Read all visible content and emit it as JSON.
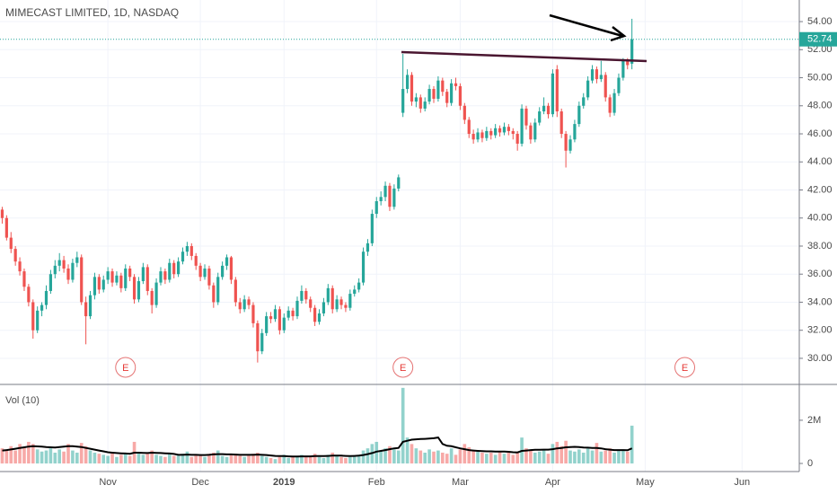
{
  "chart_data": [
    {
      "type": "candlestick",
      "title": "MIMECAST LIMITED, 1D, NASDAQ",
      "up_color": "#26a69a",
      "down_color": "#ef5350",
      "grid": true,
      "xlim": [
        -0.5,
        181
      ],
      "xticks": [
        {
          "value": 24,
          "label": "Nov"
        },
        {
          "value": 45,
          "label": "Dec"
        },
        {
          "value": 64,
          "label": "2019"
        },
        {
          "value": 85,
          "label": "Feb"
        },
        {
          "value": 104,
          "label": "Mar"
        },
        {
          "value": 125,
          "label": "Apr"
        },
        {
          "value": 146,
          "label": "May"
        },
        {
          "value": 168,
          "label": "Jun"
        }
      ],
      "ylim": [
        28.14,
        55.54
      ],
      "yticks": [
        {
          "value": 30,
          "label": "30.00"
        },
        {
          "value": 32,
          "label": "32.00"
        },
        {
          "value": 34,
          "label": "34.00"
        },
        {
          "value": 36,
          "label": "36.00"
        },
        {
          "value": 38,
          "label": "38.00"
        },
        {
          "value": 40,
          "label": "40.00"
        },
        {
          "value": 42,
          "label": "42.00"
        },
        {
          "value": 44,
          "label": "44.00"
        },
        {
          "value": 46,
          "label": "46.00"
        },
        {
          "value": 48,
          "label": "48.00"
        },
        {
          "value": 50,
          "label": "50.00"
        },
        {
          "value": 52,
          "label": "52.00"
        },
        {
          "value": 54,
          "label": "54.00"
        }
      ],
      "last_price": 52.74,
      "events": [
        {
          "index": 28,
          "label": "E"
        },
        {
          "index": 91,
          "label": "E"
        },
        {
          "index": 155,
          "label": "E"
        }
      ],
      "ohlc": [
        [
          40.6,
          40.8,
          39.6,
          40.0
        ],
        [
          40.0,
          40.2,
          38.4,
          38.6
        ],
        [
          38.6,
          39.0,
          37.5,
          37.8
        ],
        [
          37.8,
          38.0,
          36.6,
          36.9
        ],
        [
          36.9,
          37.2,
          35.9,
          36.2
        ],
        [
          36.2,
          36.4,
          34.8,
          35.1
        ],
        [
          35.1,
          35.3,
          33.7,
          34.0
        ],
        [
          34.0,
          34.2,
          31.4,
          32.0
        ],
        [
          32.0,
          33.7,
          31.8,
          33.4
        ],
        [
          33.4,
          34.0,
          33.0,
          33.8
        ],
        [
          33.8,
          35.2,
          33.5,
          34.8
        ],
        [
          34.8,
          36.3,
          34.6,
          36.0
        ],
        [
          36.0,
          37.0,
          35.7,
          36.6
        ],
        [
          36.6,
          37.5,
          36.2,
          37.0
        ],
        [
          37.0,
          37.3,
          36.1,
          36.4
        ],
        [
          36.4,
          36.7,
          35.3,
          35.6
        ],
        [
          35.6,
          37.1,
          35.4,
          36.8
        ],
        [
          36.8,
          37.6,
          36.5,
          37.2
        ],
        [
          37.2,
          37.4,
          33.8,
          34.0
        ],
        [
          34.0,
          34.4,
          31.0,
          33.0
        ],
        [
          33.0,
          34.8,
          32.8,
          34.5
        ],
        [
          34.5,
          36.1,
          34.2,
          35.8
        ],
        [
          35.8,
          36.0,
          34.6,
          34.9
        ],
        [
          34.9,
          35.9,
          34.7,
          35.6
        ],
        [
          35.6,
          36.5,
          35.3,
          36.2
        ],
        [
          36.2,
          36.4,
          35.1,
          35.4
        ],
        [
          35.4,
          36.2,
          35.2,
          35.9
        ],
        [
          35.9,
          36.1,
          34.7,
          35.0
        ],
        [
          35.0,
          36.7,
          34.8,
          36.4
        ],
        [
          36.4,
          36.6,
          35.5,
          35.8
        ],
        [
          35.8,
          36.0,
          33.9,
          34.2
        ],
        [
          34.2,
          35.8,
          34.0,
          35.5
        ],
        [
          35.5,
          36.8,
          35.3,
          36.5
        ],
        [
          36.5,
          36.7,
          34.5,
          34.8
        ],
        [
          34.8,
          35.0,
          33.2,
          33.8
        ],
        [
          33.8,
          35.7,
          33.6,
          35.4
        ],
        [
          35.4,
          36.5,
          35.2,
          36.2
        ],
        [
          36.2,
          36.4,
          35.3,
          35.6
        ],
        [
          35.6,
          37.1,
          35.4,
          36.8
        ],
        [
          36.8,
          37.0,
          35.7,
          36.0
        ],
        [
          36.0,
          37.2,
          35.8,
          36.9
        ],
        [
          36.9,
          37.9,
          36.7,
          37.6
        ],
        [
          37.6,
          38.3,
          37.3,
          38.0
        ],
        [
          38.0,
          38.2,
          37.0,
          37.3
        ],
        [
          37.3,
          37.5,
          36.3,
          36.6
        ],
        [
          36.6,
          36.8,
          35.5,
          35.8
        ],
        [
          35.8,
          36.7,
          35.6,
          36.4
        ],
        [
          36.4,
          36.6,
          34.9,
          35.2
        ],
        [
          35.2,
          35.4,
          33.6,
          34.0
        ],
        [
          34.0,
          36.1,
          33.8,
          35.8
        ],
        [
          35.8,
          36.9,
          35.6,
          36.6
        ],
        [
          36.6,
          37.4,
          36.3,
          37.2
        ],
        [
          37.2,
          37.3,
          35.3,
          35.6
        ],
        [
          35.6,
          35.8,
          33.7,
          34.0
        ],
        [
          34.0,
          34.3,
          33.2,
          33.5
        ],
        [
          33.5,
          34.5,
          33.3,
          34.2
        ],
        [
          34.2,
          34.4,
          33.5,
          33.8
        ],
        [
          33.8,
          34.0,
          32.2,
          32.5
        ],
        [
          32.5,
          32.7,
          29.7,
          30.5
        ],
        [
          30.5,
          32.1,
          30.3,
          31.8
        ],
        [
          31.8,
          33.3,
          31.6,
          33.0
        ],
        [
          33.0,
          33.3,
          32.5,
          32.8
        ],
        [
          32.8,
          33.8,
          32.6,
          33.5
        ],
        [
          33.5,
          33.7,
          31.7,
          32.0
        ],
        [
          32.0,
          33.2,
          31.8,
          32.9
        ],
        [
          32.9,
          33.7,
          32.7,
          33.4
        ],
        [
          33.4,
          33.6,
          32.7,
          33.0
        ],
        [
          33.0,
          34.4,
          32.8,
          34.1
        ],
        [
          34.1,
          35.2,
          33.9,
          34.8
        ],
        [
          34.8,
          35.0,
          33.9,
          34.2
        ],
        [
          34.2,
          34.4,
          33.3,
          33.6
        ],
        [
          33.6,
          33.8,
          32.3,
          32.6
        ],
        [
          32.6,
          33.5,
          32.4,
          33.2
        ],
        [
          33.2,
          34.3,
          33.0,
          34.0
        ],
        [
          34.0,
          35.3,
          33.8,
          35.0
        ],
        [
          35.0,
          35.2,
          33.2,
          33.5
        ],
        [
          33.5,
          34.5,
          33.3,
          34.2
        ],
        [
          34.2,
          34.4,
          33.5,
          33.8
        ],
        [
          33.8,
          34.0,
          33.3,
          33.6
        ],
        [
          33.6,
          34.9,
          33.4,
          34.6
        ],
        [
          34.6,
          35.2,
          34.4,
          34.9
        ],
        [
          34.9,
          35.7,
          34.7,
          35.4
        ],
        [
          35.4,
          37.9,
          35.2,
          37.6
        ],
        [
          37.6,
          38.5,
          37.3,
          38.2
        ],
        [
          38.2,
          40.6,
          38.0,
          40.3
        ],
        [
          40.3,
          41.5,
          40.0,
          41.2
        ],
        [
          41.2,
          41.9,
          40.9,
          41.5
        ],
        [
          41.5,
          42.6,
          41.2,
          42.3
        ],
        [
          42.3,
          42.5,
          40.5,
          40.8
        ],
        [
          40.8,
          42.4,
          40.6,
          42.1
        ],
        [
          42.1,
          43.1,
          41.9,
          42.9
        ],
        [
          47.5,
          51.7,
          47.2,
          49.2
        ],
        [
          49.2,
          50.6,
          48.9,
          50.2
        ],
        [
          50.2,
          50.4,
          48.0,
          48.3
        ],
        [
          48.3,
          48.9,
          47.9,
          48.6
        ],
        [
          48.6,
          48.8,
          47.5,
          47.8
        ],
        [
          47.8,
          48.6,
          47.6,
          48.3
        ],
        [
          48.3,
          49.5,
          48.1,
          49.2
        ],
        [
          49.2,
          49.4,
          48.2,
          48.5
        ],
        [
          48.5,
          50.1,
          48.3,
          49.8
        ],
        [
          49.8,
          50.0,
          48.7,
          49.0
        ],
        [
          49.0,
          49.2,
          47.9,
          48.2
        ],
        [
          48.2,
          49.9,
          48.0,
          49.6
        ],
        [
          49.6,
          50.0,
          49.1,
          49.4
        ],
        [
          49.4,
          49.6,
          47.7,
          48.0
        ],
        [
          48.0,
          48.2,
          46.7,
          47.0
        ],
        [
          47.0,
          47.2,
          45.7,
          46.0
        ],
        [
          46.0,
          46.3,
          45.3,
          45.6
        ],
        [
          45.6,
          46.4,
          45.4,
          46.1
        ],
        [
          46.1,
          46.3,
          45.4,
          45.7
        ],
        [
          45.7,
          46.5,
          45.5,
          46.2
        ],
        [
          46.2,
          46.4,
          45.6,
          45.9
        ],
        [
          45.9,
          46.7,
          45.7,
          46.4
        ],
        [
          46.4,
          46.6,
          45.8,
          46.1
        ],
        [
          46.1,
          46.8,
          45.9,
          46.5
        ],
        [
          46.5,
          46.7,
          45.9,
          46.2
        ],
        [
          46.2,
          46.4,
          45.6,
          46.0
        ],
        [
          46.0,
          46.2,
          44.8,
          45.3
        ],
        [
          45.3,
          48.1,
          45.1,
          47.8
        ],
        [
          47.8,
          48.0,
          46.3,
          46.6
        ],
        [
          46.6,
          46.8,
          45.3,
          45.6
        ],
        [
          45.6,
          47.1,
          45.4,
          46.8
        ],
        [
          46.8,
          47.9,
          46.6,
          47.6
        ],
        [
          47.6,
          48.6,
          47.4,
          48.0
        ],
        [
          48.0,
          48.2,
          47.1,
          47.4
        ],
        [
          47.4,
          50.6,
          47.2,
          50.3
        ],
        [
          50.6,
          50.9,
          47.2,
          47.6
        ],
        [
          47.6,
          47.8,
          45.7,
          46.0
        ],
        [
          46.0,
          46.2,
          43.6,
          44.8
        ],
        [
          44.8,
          45.9,
          44.6,
          45.6
        ],
        [
          45.6,
          47.0,
          45.4,
          46.7
        ],
        [
          46.7,
          48.3,
          46.5,
          48.0
        ],
        [
          48.0,
          48.9,
          47.8,
          48.6
        ],
        [
          48.6,
          50.1,
          48.4,
          49.8
        ],
        [
          49.8,
          50.9,
          49.6,
          50.6
        ],
        [
          50.6,
          50.8,
          49.6,
          49.9
        ],
        [
          49.9,
          51.2,
          49.7,
          50.2
        ],
        [
          50.2,
          50.4,
          48.3,
          48.6
        ],
        [
          48.6,
          48.8,
          47.2,
          47.5
        ],
        [
          47.5,
          49.2,
          47.3,
          48.9
        ],
        [
          48.9,
          50.3,
          48.7,
          50.0
        ],
        [
          50.0,
          51.4,
          49.8,
          51.2
        ],
        [
          51.2,
          51.4,
          50.6,
          50.9
        ],
        [
          51.0,
          54.2,
          50.6,
          52.74
        ]
      ]
    },
    {
      "type": "bar",
      "title": "Vol (10)",
      "ma_color": "#000000",
      "ylim": [
        -375000,
        3660000
      ],
      "yticks": [
        0,
        {
          "value": 2000000,
          "label": "2M"
        }
      ],
      "values": [
        700000,
        650000,
        800000,
        600000,
        900000,
        750000,
        1000000,
        900000,
        650000,
        550000,
        600000,
        700000,
        500000,
        650000,
        550000,
        900000,
        600000,
        500000,
        950000,
        800000,
        600000,
        500000,
        450000,
        400000,
        350000,
        500000,
        300000,
        400000,
        450000,
        350000,
        1000000,
        500000,
        400000,
        450000,
        600000,
        400000,
        350000,
        300000,
        500000,
        350000,
        400000,
        450000,
        550000,
        300000,
        400000,
        350000,
        300000,
        450000,
        500000,
        600000,
        350000,
        300000,
        400000,
        450000,
        350000,
        300000,
        400000,
        450000,
        500000,
        350000,
        300000,
        250000,
        200000,
        300000,
        400000,
        250000,
        300000,
        350000,
        400000,
        300000,
        350000,
        450000,
        300000,
        250000,
        400000,
        500000,
        350000,
        300000,
        250000,
        300000,
        350000,
        400000,
        600000,
        700000,
        900000,
        1000000,
        600000,
        700000,
        800000,
        650000,
        600000,
        3500000,
        1200000,
        900000,
        700000,
        600000,
        500000,
        650000,
        550000,
        600000,
        500000,
        450000,
        700000,
        400000,
        650000,
        900000,
        750000,
        600000,
        550000,
        500000,
        450000,
        500000,
        400000,
        550000,
        450000,
        500000,
        400000,
        550000,
        1200000,
        700000,
        600000,
        500000,
        550000,
        650000,
        450000,
        900000,
        1000000,
        800000,
        1050000,
        600000,
        550000,
        650000,
        500000,
        700000,
        600000,
        950000,
        550000,
        600000,
        700000,
        500000,
        600000,
        650000,
        550000,
        1750000
      ],
      "ma": [
        600000,
        620000,
        650000,
        680000,
        720000,
        750000,
        780000,
        800000,
        790000,
        780000,
        760000,
        750000,
        740000,
        760000,
        780000,
        800000,
        800000,
        780000,
        760000,
        720000,
        680000,
        640000,
        600000,
        560000,
        520000,
        500000,
        480000,
        470000,
        460000,
        450000,
        500000,
        500000,
        490000,
        480000,
        500000,
        490000,
        480000,
        470000,
        460000,
        440000,
        400000,
        400000,
        410000,
        400000,
        400000,
        390000,
        390000,
        400000,
        420000,
        430000,
        430000,
        420000,
        420000,
        410000,
        400000,
        400000,
        400000,
        400000,
        410000,
        400000,
        390000,
        370000,
        350000,
        340000,
        340000,
        330000,
        320000,
        320000,
        330000,
        330000,
        330000,
        340000,
        340000,
        340000,
        350000,
        360000,
        360000,
        360000,
        350000,
        340000,
        350000,
        360000,
        390000,
        430000,
        480000,
        550000,
        580000,
        620000,
        660000,
        700000,
        720000,
        1000000,
        1050000,
        1100000,
        1120000,
        1130000,
        1140000,
        1150000,
        1170000,
        1200000,
        900000,
        820000,
        800000,
        750000,
        700000,
        660000,
        620000,
        600000,
        580000,
        570000,
        560000,
        560000,
        550000,
        550000,
        550000,
        540000,
        520000,
        510000,
        580000,
        600000,
        620000,
        630000,
        630000,
        640000,
        640000,
        660000,
        700000,
        720000,
        750000,
        760000,
        770000,
        760000,
        740000,
        730000,
        720000,
        720000,
        700000,
        660000,
        640000,
        620000,
        620000,
        620000,
        610000,
        700000
      ]
    }
  ]
}
